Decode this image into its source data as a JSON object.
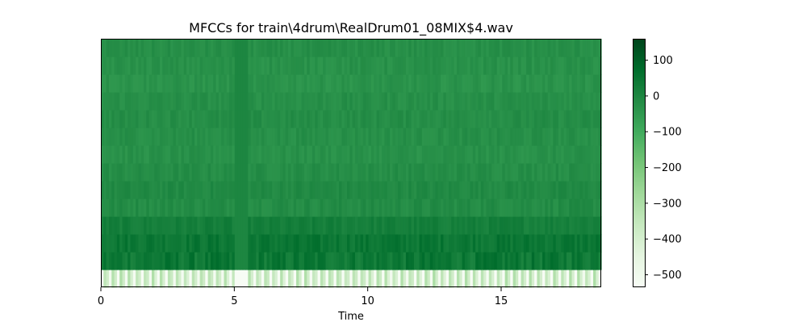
{
  "chart_data": {
    "type": "heatmap",
    "title": "MFCCs for train\\4drum\\RealDrum01_08MIX$4.wav",
    "xlabel": "Time",
    "ylabel": "",
    "x_range": [
      0,
      18.75
    ],
    "x_ticks": [
      0,
      5,
      10,
      15
    ],
    "x_tick_labels": [
      "0",
      "5",
      "10",
      "15"
    ],
    "n_coefficients": 14,
    "n_frames": 187,
    "colormap": "Greens",
    "colorbar": {
      "range": [
        -535,
        160
      ],
      "ticks": [
        100,
        0,
        -100,
        -200,
        -300,
        -400,
        -500
      ],
      "tick_labels": [
        "100",
        "0",
        "−100",
        "−200",
        "−300",
        "−400",
        "−500"
      ]
    },
    "coefficient_mean_values": [
      -420,
      40,
      45,
      20,
      -15,
      -10,
      -20,
      -30,
      -25,
      -20,
      -25,
      -35,
      -30,
      -25
    ],
    "coefficient_variation": [
      130,
      35,
      25,
      18,
      18,
      16,
      16,
      16,
      16,
      16,
      16,
      16,
      16,
      16
    ],
    "silent_segment": {
      "time_range": [
        5.0,
        5.5
      ],
      "value": -535
    }
  }
}
